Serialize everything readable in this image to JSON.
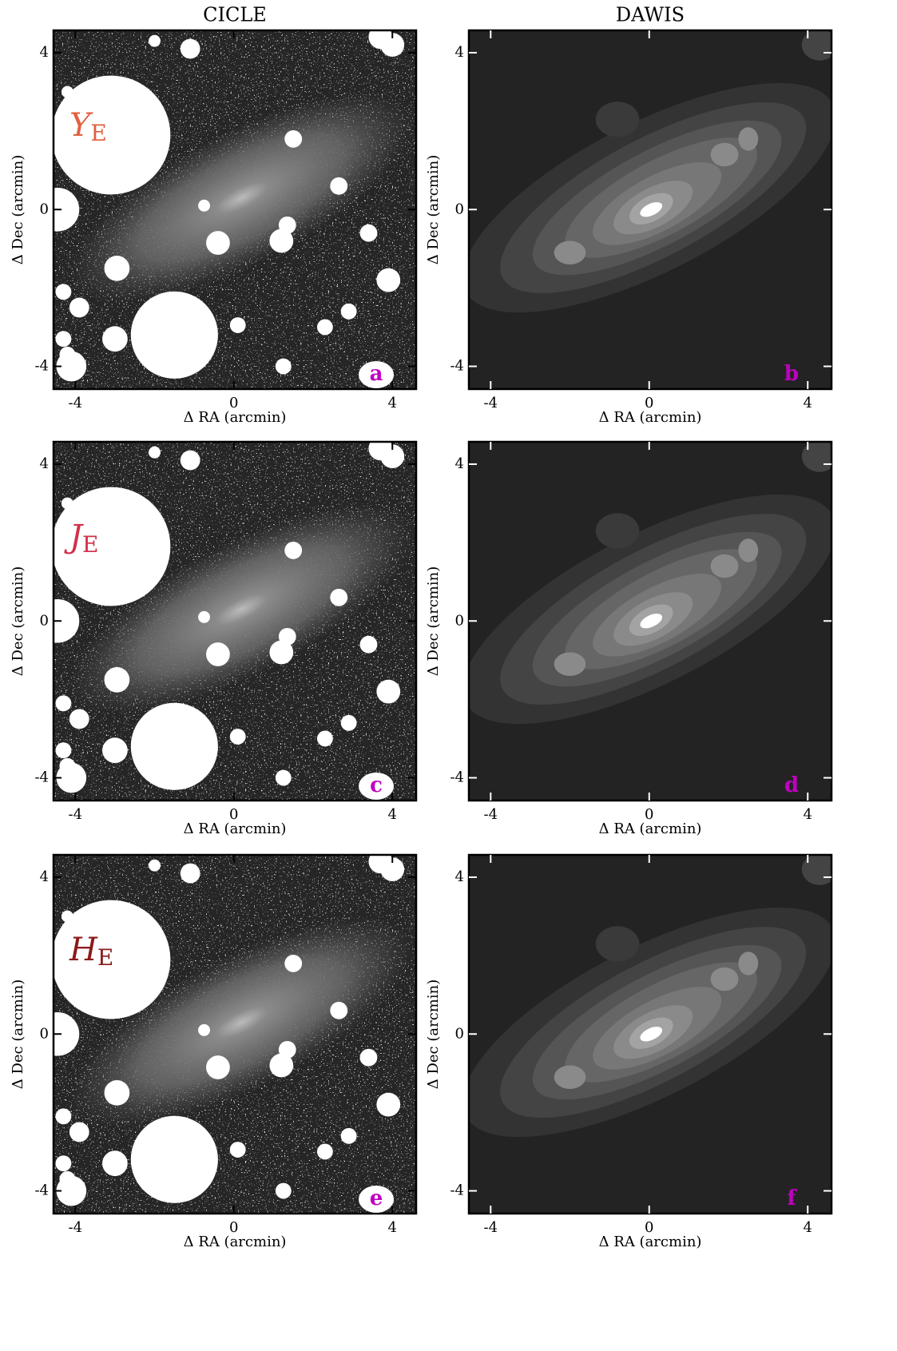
{
  "chart_data": [
    {
      "type": "image",
      "title": "CICLE",
      "style": "masked",
      "panel_label": "a",
      "annotation": "Y",
      "annotation_subscript": "E",
      "annotation_color": "#e0603f",
      "xlabel": "Δ RA (arcmin)",
      "ylabel": "Δ Dec (arcmin)",
      "xlim": [
        -4.55,
        4.6
      ],
      "ylim": [
        -4.58,
        4.57
      ],
      "xticks": [
        -4,
        0,
        4
      ],
      "yticks": [
        -4,
        0,
        4
      ]
    },
    {
      "type": "image",
      "title": "DAWIS",
      "style": "contour",
      "panel_label": "b",
      "xlabel": "Δ RA (arcmin)",
      "ylabel": "Δ Dec (arcmin)",
      "xlim": [
        -4.55,
        4.6
      ],
      "ylim": [
        -4.58,
        4.57
      ],
      "xticks": [
        -4,
        0,
        4
      ],
      "yticks": [
        -4,
        0,
        4
      ]
    },
    {
      "type": "image",
      "style": "masked",
      "panel_label": "c",
      "annotation": "J",
      "annotation_subscript": "E",
      "annotation_color": "#d0304a",
      "xlabel": "Δ RA (arcmin)",
      "ylabel": "Δ Dec (arcmin)",
      "xlim": [
        -4.55,
        4.6
      ],
      "ylim": [
        -4.58,
        4.57
      ],
      "xticks": [
        -4,
        0,
        4
      ],
      "yticks": [
        -4,
        0,
        4
      ]
    },
    {
      "type": "image",
      "style": "contour",
      "panel_label": "d",
      "xlabel": "Δ RA (arcmin)",
      "ylabel": "Δ Dec (arcmin)",
      "xlim": [
        -4.55,
        4.6
      ],
      "ylim": [
        -4.58,
        4.57
      ],
      "xticks": [
        -4,
        0,
        4
      ],
      "yticks": [
        -4,
        0,
        4
      ]
    },
    {
      "type": "image",
      "style": "masked",
      "panel_label": "e",
      "annotation": "H",
      "annotation_subscript": "E",
      "annotation_color": "#8b1a1a",
      "xlabel": "Δ RA (arcmin)",
      "ylabel": "Δ Dec (arcmin)",
      "xlim": [
        -4.55,
        4.6
      ],
      "ylim": [
        -4.58,
        4.57
      ],
      "xticks": [
        -4,
        0,
        4
      ],
      "yticks": [
        -4,
        0,
        4
      ]
    },
    {
      "type": "image",
      "style": "contour",
      "panel_label": "f",
      "xlabel": "Δ RA (arcmin)",
      "ylabel": "Δ Dec (arcmin)",
      "xlim": [
        -4.55,
        4.6
      ],
      "ylim": [
        -4.58,
        4.57
      ],
      "xticks": [
        -4,
        0,
        4
      ],
      "yticks": [
        -4,
        0,
        4
      ]
    }
  ]
}
